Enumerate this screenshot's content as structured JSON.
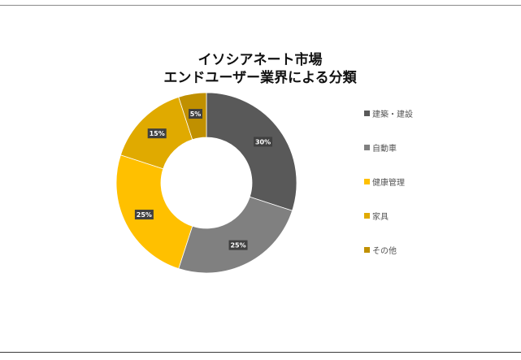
{
  "chart_data": {
    "type": "pie",
    "donut": true,
    "title_line1": "イソシアネート市場",
    "title_line2": "エンドユーザー業界による分類",
    "categories": [
      "建築・建設",
      "自動車",
      "健康管理",
      "家具",
      "その他"
    ],
    "values": [
      30,
      25,
      25,
      15,
      5
    ],
    "data_labels": [
      "30%",
      "25%",
      "25%",
      "15%",
      "5%"
    ],
    "colors": [
      "#595959",
      "#808080",
      "#FFC000",
      "#E0AA00",
      "#C09000"
    ],
    "legend_position": "right"
  }
}
